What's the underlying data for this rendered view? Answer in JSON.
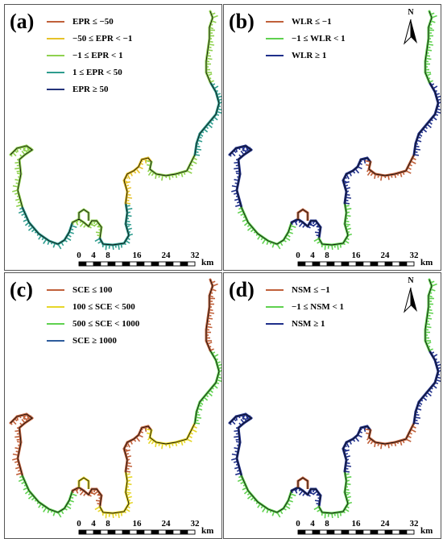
{
  "panels": [
    {
      "label": "(a)",
      "legend": [
        {
          "text": "EPR ≤ −50",
          "color": "#c0603a"
        },
        {
          "text": "−50 ≤ EPR < −1",
          "color": "#e6c229"
        },
        {
          "text": "−1 ≤ EPR < 1",
          "color": "#8fd14f"
        },
        {
          "text": "1 ≤ EPR < 50",
          "color": "#2e9c8e"
        },
        {
          "text": "EPR ≥ 50",
          "color": "#24337a"
        }
      ],
      "north_arrow": false,
      "segment_colors": [
        "#8fd14f",
        "#2e9c8e",
        "#8fd14f",
        "#2e9c8e",
        "#e6c229",
        "#8fd14f",
        "#2e9c8e",
        "#8fd14f"
      ]
    },
    {
      "label": "(b)",
      "legend": [
        {
          "text": "WLR ≤ −1",
          "color": "#c0603a"
        },
        {
          "text": "−1 ≤ WLR < 1",
          "color": "#5fd14f"
        },
        {
          "text": "WLR ≥ 1",
          "color": "#1f2f8a"
        }
      ],
      "north_arrow": true,
      "segment_colors": [
        "#1f2f8a",
        "#5fd14f",
        "#1f2f8a",
        "#5fd14f",
        "#1f2f8a",
        "#c0603a",
        "#1f2f8a",
        "#5fd14f"
      ]
    },
    {
      "label": "(c)",
      "legend": [
        {
          "text": "SCE ≤ 100",
          "color": "#c0603a"
        },
        {
          "text": "100 ≤ SCE < 500",
          "color": "#e6d629"
        },
        {
          "text": "500 ≤ SCE < 1000",
          "color": "#5fd14f"
        },
        {
          "text": "SCE ≥ 1000",
          "color": "#2e5c9c"
        }
      ],
      "north_arrow": false,
      "segment_colors": [
        "#c0603a",
        "#5fd14f",
        "#c0603a",
        "#e6d629",
        "#c0603a",
        "#e6d629",
        "#5fd14f",
        "#c0603a"
      ]
    },
    {
      "label": "(d)",
      "legend": [
        {
          "text": "NSM ≤ −1",
          "color": "#c0603a"
        },
        {
          "text": "−1 ≤ NSM < 1",
          "color": "#5fd14f"
        },
        {
          "text": "NSM ≥ 1",
          "color": "#1f2f8a"
        }
      ],
      "north_arrow": true,
      "segment_colors": [
        "#1f2f8a",
        "#5fd14f",
        "#1f2f8a",
        "#5fd14f",
        "#1f2f8a",
        "#c0603a",
        "#1f2f8a",
        "#5fd14f"
      ]
    }
  ],
  "scalebar": {
    "ticks": [
      "0",
      "4",
      "8",
      "16",
      "24",
      "32"
    ],
    "unit": "km"
  },
  "north_label": "N"
}
